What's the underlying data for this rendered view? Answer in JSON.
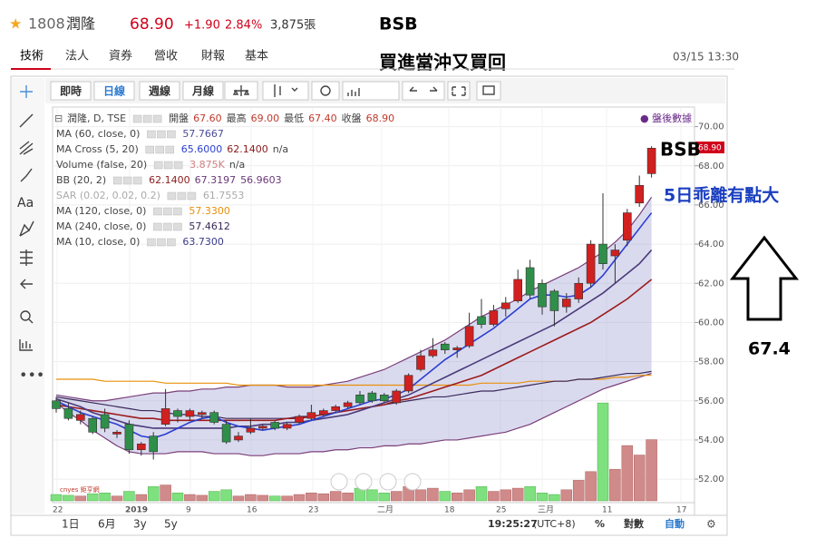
{
  "header": {
    "code": "1808",
    "name": "潤隆",
    "price": "68.90",
    "change": "+1.90",
    "percent": "2.84%",
    "volume": "3,875張",
    "time": "03/15 13:30"
  },
  "tabs": [
    "技術",
    "法人",
    "資券",
    "營收",
    "財報",
    "基本"
  ],
  "annotations": {
    "title": "BSB",
    "subtitle": "買進當沖又買回",
    "bsb": "BSB",
    "note": "5日乖離有點大",
    "target": "67.4"
  },
  "toolbar": {
    "buttons": [
      "即時",
      "日線",
      "週線",
      "月線"
    ],
    "indicator": "指標",
    "text_tool": "Aa",
    "bottom": [
      "1日",
      "6月",
      "3y",
      "5y"
    ],
    "clock": "19:25:27",
    "tz": "(UTC+8)",
    "pct": "%",
    "log": "對數",
    "auto": "自動"
  },
  "chart": {
    "type": "candlestick",
    "after_hours": "● 盤後數據",
    "last_label": "68.90",
    "logo": "cnyes 鉅亨網",
    "indicators": [
      [
        {
          "text": "潤隆, D, TSE",
          "color": "#444"
        },
        {
          "text": "開盤",
          "color": "#444"
        },
        {
          "text": "67.60",
          "color": "#c0392b"
        },
        {
          "text": "最高",
          "color": "#444"
        },
        {
          "text": "69.00",
          "color": "#c0392b"
        },
        {
          "text": "最低",
          "color": "#444"
        },
        {
          "text": "67.40",
          "color": "#c0392b"
        },
        {
          "text": "收盤",
          "color": "#444"
        },
        {
          "text": "68.90",
          "color": "#c0392b"
        }
      ],
      [
        {
          "text": "MA (60, close, 0)",
          "color": "#444"
        },
        {
          "text": "57.7667",
          "color": "#4b4b9a"
        }
      ],
      [
        {
          "text": "MA Cross (5, 20)",
          "color": "#444"
        },
        {
          "text": "65.6000",
          "color": "#2a3fd0"
        },
        {
          "text": "62.1400",
          "color": "#8b1a1a"
        },
        {
          "text": "n/a",
          "color": "#444"
        }
      ],
      [
        {
          "text": "Volume (false, 20)",
          "color": "#444"
        },
        {
          "text": "3.875K",
          "color": "#d08080"
        },
        {
          "text": "n/a",
          "color": "#444"
        }
      ],
      [
        {
          "text": "BB (20, 2)",
          "color": "#444"
        },
        {
          "text": "62.1400",
          "color": "#8b1a1a"
        },
        {
          "text": "67.3197",
          "color": "#6a3a7a"
        },
        {
          "text": "56.9603",
          "color": "#6a3a7a"
        }
      ],
      [
        {
          "text": "SAR (0.02, 0.02, 0.2)",
          "color": "#aaa"
        },
        {
          "text": "61.7553",
          "color": "#aaa"
        }
      ],
      [
        {
          "text": "MA (120, close, 0)",
          "color": "#444"
        },
        {
          "text": "57.3300",
          "color": "#e8900a"
        }
      ],
      [
        {
          "text": "MA (240, close, 0)",
          "color": "#444"
        },
        {
          "text": "57.4612",
          "color": "#3a2a5a"
        }
      ],
      [
        {
          "text": "MA (10, close, 0)",
          "color": "#444"
        },
        {
          "text": "63.7300",
          "color": "#3a3a8a"
        }
      ]
    ],
    "ylim": [
      50.8,
      71.0
    ],
    "yticks": [
      {
        "value": 70,
        "label": "70.00"
      },
      {
        "value": 68,
        "label": "68.00"
      },
      {
        "value": 66,
        "label": "66.00"
      },
      {
        "value": 64,
        "label": "64.00"
      },
      {
        "value": 62,
        "label": "62.00"
      },
      {
        "value": 60,
        "label": "60.00"
      },
      {
        "value": 58,
        "label": "58.00"
      },
      {
        "value": 56,
        "label": "56.00"
      },
      {
        "value": 54,
        "label": "54.00"
      },
      {
        "value": 52,
        "label": "52.00"
      }
    ],
    "xlabels": [
      "22",
      "2019",
      "9",
      "16",
      "23",
      "二月",
      "18",
      "25",
      "三月",
      "11",
      "17"
    ],
    "open": [
      56.0,
      55.6,
      55.0,
      55.1,
      55.3,
      54.3,
      54.8,
      53.5,
      54.2,
      54.8,
      55.5,
      55.2,
      55.3,
      55.4,
      54.8,
      54.0,
      54.4,
      54.6,
      54.9,
      54.6,
      54.9,
      55.1,
      55.3,
      55.5,
      55.7,
      56.3,
      56.4,
      56.3,
      55.9,
      56.5,
      57.6,
      58.3,
      58.9,
      58.6,
      58.8,
      60.3,
      59.9,
      60.7,
      61.1,
      62.8,
      62.0,
      61.6,
      60.8,
      61.2,
      62.0,
      64.0,
      63.4,
      64.2,
      66.1,
      67.6
    ],
    "high": [
      56.2,
      55.9,
      55.5,
      55.2,
      55.6,
      54.5,
      55.0,
      53.9,
      54.4,
      56.6,
      55.6,
      55.6,
      55.5,
      55.5,
      55.0,
      54.4,
      55.1,
      54.8,
      55.0,
      54.9,
      55.3,
      55.8,
      55.6,
      55.8,
      56.0,
      56.5,
      56.5,
      56.4,
      56.6,
      57.4,
      58.6,
      59.2,
      59.0,
      58.8,
      60.5,
      61.2,
      60.9,
      61.3,
      62.7,
      63.2,
      62.2,
      61.7,
      61.5,
      62.3,
      64.2,
      66.6,
      64.0,
      65.8,
      67.5,
      69.0
    ],
    "low": [
      55.4,
      55.0,
      54.8,
      54.3,
      54.4,
      54.1,
      53.3,
      53.2,
      53.0,
      54.7,
      54.9,
      55.0,
      55.1,
      54.8,
      53.8,
      53.9,
      54.3,
      54.5,
      54.5,
      54.5,
      54.8,
      55.0,
      55.2,
      55.4,
      55.6,
      55.8,
      55.9,
      55.9,
      55.8,
      56.4,
      57.5,
      58.2,
      58.4,
      58.2,
      58.7,
      59.7,
      59.8,
      60.3,
      61.0,
      61.2,
      60.4,
      59.8,
      60.5,
      61.0,
      61.8,
      62.7,
      62.0,
      63.9,
      65.9,
      67.4
    ],
    "close": [
      55.6,
      55.1,
      55.3,
      54.4,
      54.6,
      54.4,
      53.5,
      53.8,
      53.4,
      55.6,
      55.2,
      55.5,
      55.4,
      54.9,
      53.9,
      54.2,
      54.6,
      54.7,
      54.6,
      54.8,
      55.2,
      55.4,
      55.5,
      55.7,
      55.9,
      55.9,
      56.0,
      56.0,
      56.5,
      57.3,
      58.3,
      58.6,
      58.6,
      58.7,
      59.8,
      59.9,
      60.6,
      61.0,
      62.2,
      61.4,
      60.8,
      60.6,
      61.2,
      62.0,
      64.0,
      63.0,
      63.7,
      65.6,
      67.0,
      68.9
    ],
    "volume": [
      400,
      350,
      300,
      450,
      500,
      300,
      600,
      400,
      900,
      1000,
      500,
      400,
      350,
      600,
      700,
      300,
      400,
      350,
      300,
      300,
      400,
      500,
      450,
      600,
      500,
      800,
      700,
      500,
      600,
      900,
      700,
      800,
      600,
      500,
      700,
      900,
      600,
      700,
      800,
      900,
      500,
      400,
      700,
      1300,
      1850,
      6200,
      2000,
      3500,
      2900,
      3875
    ],
    "lines": [
      {
        "color": "#7a3f7a",
        "values": [
          56.3,
          56.2,
          56.1,
          56.0,
          56.0,
          56.1,
          56.2,
          56.3,
          56.4,
          56.4,
          56.5,
          56.5,
          56.6,
          56.6,
          56.7,
          56.7,
          56.8,
          56.8,
          56.8,
          56.7,
          56.7,
          56.7,
          56.8,
          56.9,
          57.0,
          57.2,
          57.4,
          57.6,
          57.9,
          58.2,
          58.5,
          58.8,
          59.1,
          59.5,
          59.9,
          60.3,
          60.6,
          60.9,
          61.2,
          61.6,
          61.9,
          62.2,
          62.5,
          62.8,
          63.2,
          63.6,
          64.1,
          64.7,
          65.5,
          66.4
        ]
      },
      {
        "color": "#7a3f7a",
        "values": [
          55.9,
          55.4,
          55.0,
          54.5,
          54.1,
          53.7,
          53.4,
          53.3,
          53.3,
          53.3,
          53.4,
          53.4,
          53.4,
          53.3,
          53.3,
          53.3,
          53.2,
          53.2,
          53.3,
          53.3,
          53.3,
          53.4,
          53.4,
          53.5,
          53.5,
          53.6,
          53.6,
          53.7,
          53.7,
          53.8,
          53.8,
          53.9,
          54.0,
          54.0,
          54.1,
          54.2,
          54.3,
          54.4,
          54.6,
          54.8,
          55.1,
          55.4,
          55.7,
          56.0,
          56.3,
          56.6,
          56.8,
          57.0,
          57.2,
          57.4
        ]
      },
      {
        "color": "#e8900a",
        "values": [
          57.1,
          57.1,
          57.1,
          57.1,
          57.0,
          57.0,
          57.0,
          57.0,
          57.0,
          56.9,
          56.9,
          56.9,
          56.9,
          56.9,
          56.9,
          56.8,
          56.8,
          56.8,
          56.8,
          56.8,
          56.8,
          56.8,
          56.8,
          56.8,
          56.8,
          56.8,
          56.8,
          56.8,
          56.8,
          56.8,
          56.8,
          56.8,
          56.8,
          56.8,
          56.8,
          56.9,
          56.9,
          56.9,
          56.9,
          57.0,
          57.0,
          57.0,
          57.0,
          57.1,
          57.1,
          57.1,
          57.2,
          57.2,
          57.3,
          57.3
        ]
      },
      {
        "color": "#3a2a5a",
        "values": [
          56.2,
          56.1,
          56.0,
          55.9,
          55.8,
          55.7,
          55.6,
          55.5,
          55.5,
          55.4,
          55.3,
          55.3,
          55.2,
          55.2,
          55.1,
          55.1,
          55.1,
          55.1,
          55.1,
          55.1,
          55.2,
          55.2,
          55.3,
          55.4,
          55.5,
          55.6,
          55.7,
          55.8,
          55.9,
          56.0,
          56.1,
          56.2,
          56.2,
          56.3,
          56.4,
          56.5,
          56.5,
          56.6,
          56.7,
          56.8,
          56.9,
          57.0,
          57.0,
          57.1,
          57.1,
          57.2,
          57.3,
          57.4,
          57.4,
          57.5
        ]
      },
      {
        "color": "#9b1c1c",
        "values": [
          55.8,
          55.7,
          55.6,
          55.5,
          55.4,
          55.3,
          55.2,
          55.1,
          55.1,
          55.0,
          55.0,
          55.0,
          55.0,
          55.0,
          55.0,
          55.0,
          55.0,
          55.0,
          55.0,
          55.1,
          55.1,
          55.2,
          55.3,
          55.4,
          55.5,
          55.6,
          55.7,
          55.8,
          56.0,
          56.1,
          56.3,
          56.5,
          56.7,
          56.9,
          57.1,
          57.3,
          57.6,
          57.9,
          58.2,
          58.5,
          58.8,
          59.1,
          59.4,
          59.7,
          60.0,
          60.4,
          60.8,
          61.2,
          61.7,
          62.2
        ]
      },
      {
        "color": "#4b3b7a",
        "values": [
          56.1,
          55.9,
          55.7,
          55.4,
          55.2,
          55.0,
          54.8,
          54.7,
          54.6,
          54.6,
          54.6,
          54.6,
          54.6,
          54.6,
          54.6,
          54.7,
          54.7,
          54.8,
          54.8,
          54.9,
          54.9,
          55.0,
          55.1,
          55.2,
          55.3,
          55.5,
          55.7,
          55.9,
          56.1,
          56.3,
          56.6,
          56.9,
          57.2,
          57.5,
          57.8,
          58.1,
          58.4,
          58.7,
          59.0,
          59.3,
          59.6,
          59.9,
          60.3,
          60.7,
          61.1,
          61.5,
          62.0,
          62.5,
          63.0,
          63.7
        ]
      },
      {
        "color": "#2a3fd0",
        "values": [
          56.0,
          55.7,
          55.4,
          55.2,
          55.0,
          54.8,
          54.5,
          54.2,
          54.1,
          54.3,
          54.6,
          54.9,
          55.1,
          55.2,
          54.9,
          54.7,
          54.6,
          54.5,
          54.6,
          54.7,
          54.8,
          55.0,
          55.2,
          55.4,
          55.6,
          55.8,
          56.0,
          56.1,
          56.3,
          56.6,
          57.1,
          57.6,
          58.1,
          58.5,
          58.9,
          59.3,
          59.7,
          60.2,
          60.7,
          61.2,
          61.4,
          61.4,
          61.3,
          61.4,
          61.8,
          62.4,
          63.2,
          64.0,
          64.8,
          65.6
        ]
      }
    ]
  }
}
